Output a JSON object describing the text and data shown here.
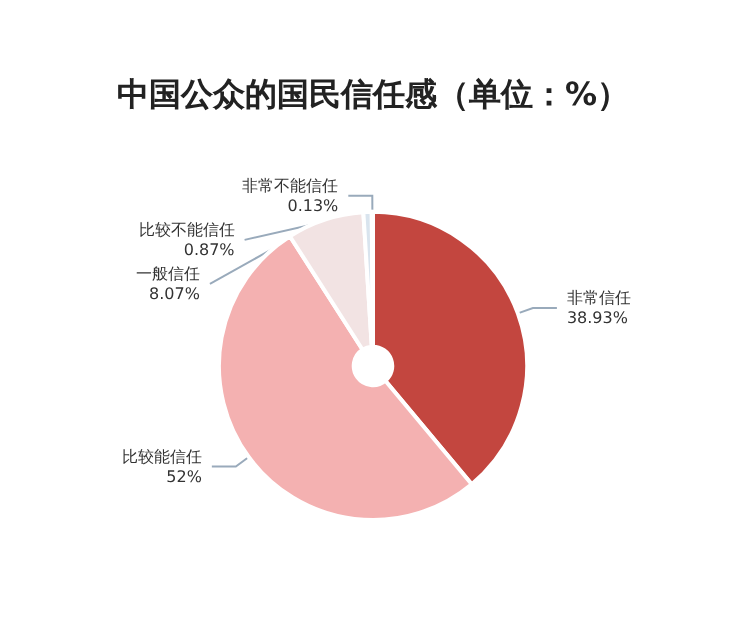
{
  "chart_data": {
    "type": "donut",
    "title": "中国公众的国民信任感（单位：%）",
    "categories": [
      "非常信任",
      "比较能信任",
      "一般信任",
      "比较不能信任",
      "非常不能信任"
    ],
    "values": [
      38.93,
      52,
      8.07,
      0.87,
      0.13
    ],
    "colors": [
      "#c3463f",
      "#f4b1b1",
      "#f2e3e3",
      "#d9e4ee",
      "#b7c9db"
    ],
    "value_labels": [
      "38.93%",
      "52%",
      "8.07%",
      "0.87%",
      "0.13%"
    ],
    "legend": false
  }
}
